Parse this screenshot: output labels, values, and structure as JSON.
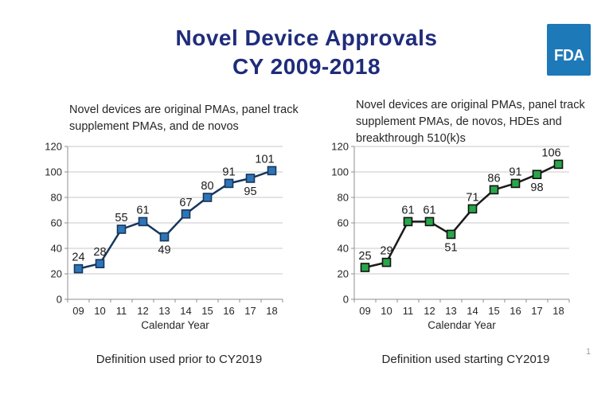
{
  "page": {
    "title_line1": "Novel Device Approvals",
    "title_line2": "CY 2009-2018",
    "title_color": "#1F2C7B",
    "page_number": "1"
  },
  "logo": {
    "text": "FDA",
    "background": "#1E79B8"
  },
  "chart_data": [
    {
      "type": "line",
      "title": "Novel devices are original PMAs, panel track supplement PMAs, and de novos",
      "caption": "Definition used prior to CY2019",
      "x": [
        "09",
        "10",
        "11",
        "12",
        "13",
        "14",
        "15",
        "16",
        "17",
        "18"
      ],
      "values": [
        24,
        28,
        55,
        61,
        49,
        67,
        80,
        91,
        95,
        101
      ],
      "xlabel": "Calendar Year",
      "ylabel": "",
      "ylim": [
        0,
        120
      ],
      "ytick_step": 20,
      "grid": true,
      "legend": "none",
      "marker": "square",
      "line_color": "#17365D",
      "marker_fill": "#2E75B6",
      "marker_stroke": "#17365D",
      "labels_below": [
        4,
        8
      ]
    },
    {
      "type": "line",
      "title": "Novel devices are original PMAs, panel track supplement PMAs, de novos, HDEs and breakthrough 510(k)s",
      "caption": "Definition used starting CY2019",
      "x": [
        "09",
        "10",
        "11",
        "12",
        "13",
        "14",
        "15",
        "16",
        "17",
        "18"
      ],
      "values": [
        25,
        29,
        61,
        61,
        51,
        71,
        86,
        91,
        98,
        106
      ],
      "xlabel": "Calendar Year",
      "ylabel": "",
      "ylim": [
        0,
        120
      ],
      "ytick_step": 20,
      "grid": true,
      "legend": "none",
      "marker": "square",
      "line_color": "#1A1A1A",
      "marker_fill": "#29A64A",
      "marker_stroke": "#111111",
      "labels_below": [
        4,
        8
      ]
    }
  ]
}
